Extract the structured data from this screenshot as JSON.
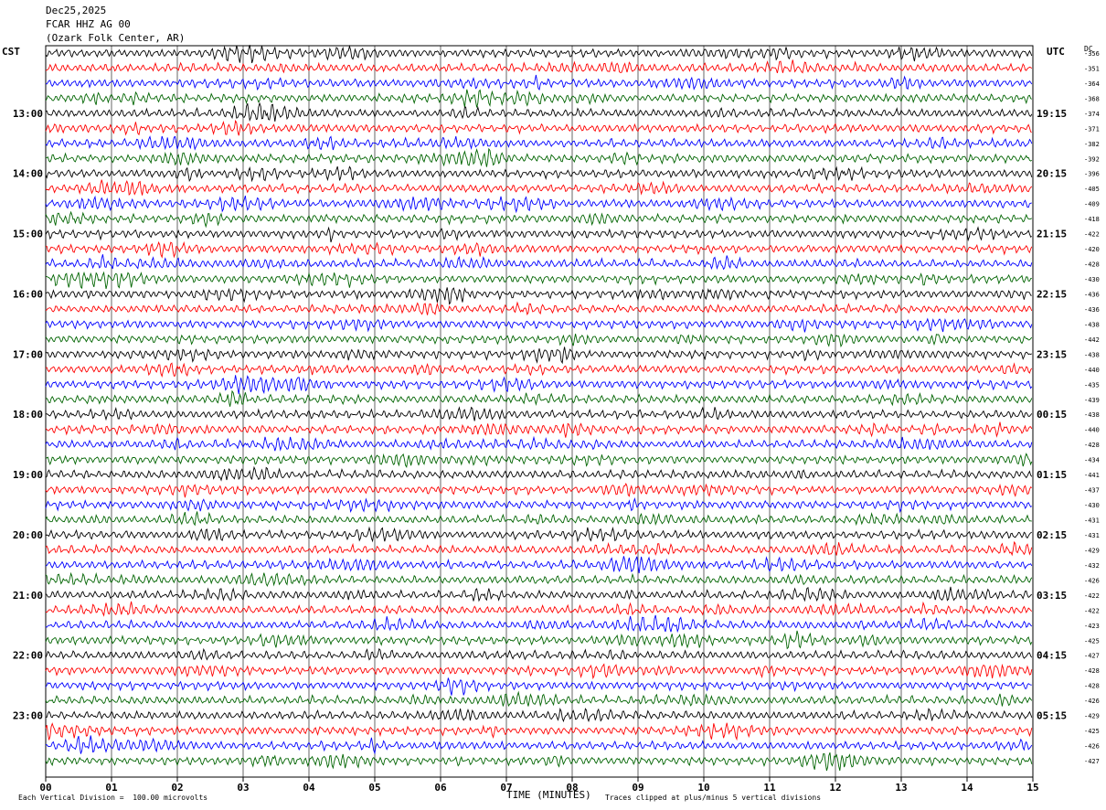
{
  "header": {
    "date": "Dec25,2025",
    "station": "FCAR HHZ AG 00",
    "location": "(Ozark Folk Center, AR)"
  },
  "left_tz": "CST",
  "right_tz": "UTC",
  "dc_label": "DC",
  "footer": {
    "scale_note": "Each Vertical Division =  100.00 microvolts",
    "xlabel": "TIME (MINUTES)",
    "clip_note": "Traces clipped at plus/minus 5 vertical divisions"
  },
  "colors": {
    "trace_cycle": [
      "#000000",
      "#ff0000",
      "#0000ff",
      "#006400"
    ],
    "grid": "#000000"
  },
  "chart_data": {
    "type": "line",
    "description_type": "helicorder seismogram",
    "x_ticks": [
      "00",
      "01",
      "02",
      "03",
      "04",
      "05",
      "06",
      "07",
      "08",
      "09",
      "10",
      "11",
      "12",
      "13",
      "14",
      "15"
    ],
    "xlim": [
      0,
      15
    ],
    "rows": 48,
    "left_hour_labels": [
      {
        "row": 4,
        "text": "13:00"
      },
      {
        "row": 8,
        "text": "14:00"
      },
      {
        "row": 12,
        "text": "15:00"
      },
      {
        "row": 16,
        "text": "16:00"
      },
      {
        "row": 20,
        "text": "17:00"
      },
      {
        "row": 24,
        "text": "18:00"
      },
      {
        "row": 28,
        "text": "19:00"
      },
      {
        "row": 32,
        "text": "20:00"
      },
      {
        "row": 36,
        "text": "21:00"
      },
      {
        "row": 40,
        "text": "22:00"
      },
      {
        "row": 44,
        "text": "23:00"
      }
    ],
    "right_hour_labels": [
      {
        "row": 4,
        "text": "19:15"
      },
      {
        "row": 8,
        "text": "20:15"
      },
      {
        "row": 12,
        "text": "21:15"
      },
      {
        "row": 16,
        "text": "22:15"
      },
      {
        "row": 20,
        "text": "23:15"
      },
      {
        "row": 24,
        "text": "00:15"
      },
      {
        "row": 28,
        "text": "01:15"
      },
      {
        "row": 32,
        "text": "02:15"
      },
      {
        "row": 36,
        "text": "03:15"
      },
      {
        "row": 40,
        "text": "04:15"
      },
      {
        "row": 44,
        "text": "05:15"
      }
    ],
    "dc_offsets": [
      "-356",
      "-351",
      "-364",
      "-368",
      "-374",
      "-371",
      "-382",
      "-392",
      "-396",
      "-405",
      "-409",
      "-418",
      "-422",
      "-420",
      "-428",
      "-430",
      "-436",
      "-436",
      "-438",
      "-442",
      "-438",
      "-440",
      "-435",
      "-439",
      "-438",
      "-440",
      "-428",
      "-434",
      "-441",
      "-437",
      "-430",
      "-431",
      "-431",
      "-429",
      "-432",
      "-426",
      "-422",
      "-422",
      "-423",
      "-425",
      "-427",
      "-428",
      "-428",
      "-426",
      "-429",
      "-425",
      "-426",
      "-427"
    ]
  }
}
